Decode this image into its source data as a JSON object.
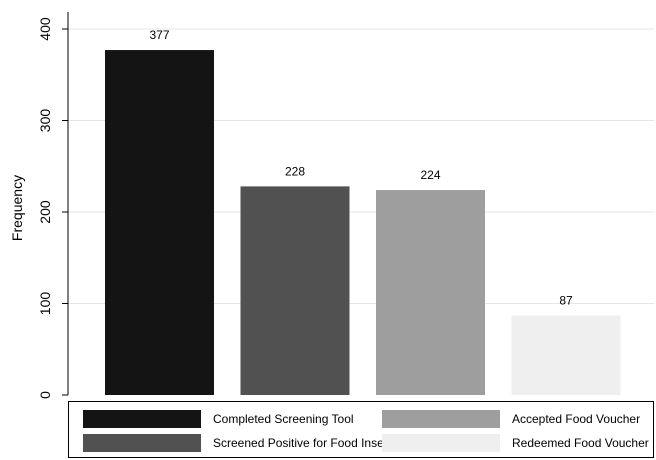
{
  "chart_data": {
    "type": "bar",
    "title": "",
    "xlabel": "",
    "ylabel": "Frequency",
    "ylim": [
      0,
      420
    ],
    "yticks": [
      0,
      100,
      200,
      300,
      400
    ],
    "grid": true,
    "legend_position": "bottom",
    "categories": [
      "Completed Screening Tool",
      "Screened Positive for Food Insecurity",
      "Accepted Food Voucher",
      "Redeemed Food Voucher"
    ],
    "values": [
      377,
      228,
      224,
      87
    ],
    "data_labels": [
      "377",
      "228",
      "224",
      "87"
    ],
    "colors": [
      "#141414",
      "#515151",
      "#9e9e9e",
      "#efefef"
    ]
  }
}
